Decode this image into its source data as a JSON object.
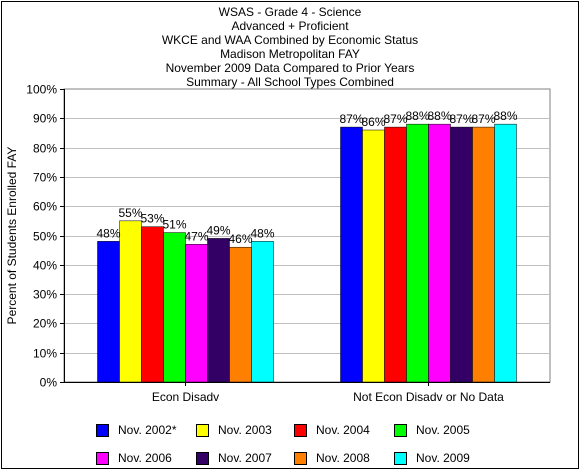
{
  "chart_data": {
    "type": "bar",
    "title_lines": [
      "WSAS - Grade 4 - Science",
      "Advanced + Proficient",
      "WKCE and WAA Combined by Economic Status",
      "Madison Metropolitan FAY",
      "November 2009 Data  Compared to Prior Years",
      "Summary - All School Types Combined"
    ],
    "xlabel": "",
    "ylabel": "Percent of Students Enrolled FAY",
    "ylim": [
      0,
      100
    ],
    "yticks": [
      "0%",
      "10%",
      "20%",
      "30%",
      "40%",
      "50%",
      "60%",
      "70%",
      "80%",
      "90%",
      "100%"
    ],
    "categories": [
      "Econ Disadv",
      "Not Econ Disadv or No Data"
    ],
    "series": [
      {
        "name": "Nov. 2002*",
        "color": "#0000ff",
        "values": [
          48,
          87
        ],
        "labels": [
          "48%",
          "87%"
        ]
      },
      {
        "name": "Nov. 2003",
        "color": "#ffff00",
        "values": [
          55,
          86
        ],
        "labels": [
          "55%",
          "86%"
        ]
      },
      {
        "name": "Nov. 2004",
        "color": "#ff0000",
        "values": [
          53,
          87
        ],
        "labels": [
          "53%",
          "87%"
        ]
      },
      {
        "name": "Nov. 2005",
        "color": "#00ff00",
        "values": [
          51,
          88
        ],
        "labels": [
          "51%",
          "88%"
        ]
      },
      {
        "name": "Nov. 2006",
        "color": "#ff00ff",
        "values": [
          47,
          88
        ],
        "labels": [
          "47%",
          "88%"
        ]
      },
      {
        "name": "Nov. 2007",
        "color": "#330066",
        "values": [
          49,
          87
        ],
        "labels": [
          "49%",
          "87%"
        ]
      },
      {
        "name": "Nov. 2008",
        "color": "#ff8000",
        "values": [
          46,
          87
        ],
        "labels": [
          "46%",
          "87%"
        ]
      },
      {
        "name": "Nov. 2009",
        "color": "#00ffff",
        "values": [
          48,
          88
        ],
        "labels": [
          "48%",
          "88%"
        ]
      }
    ],
    "grid": true,
    "legend_position": "bottom"
  }
}
